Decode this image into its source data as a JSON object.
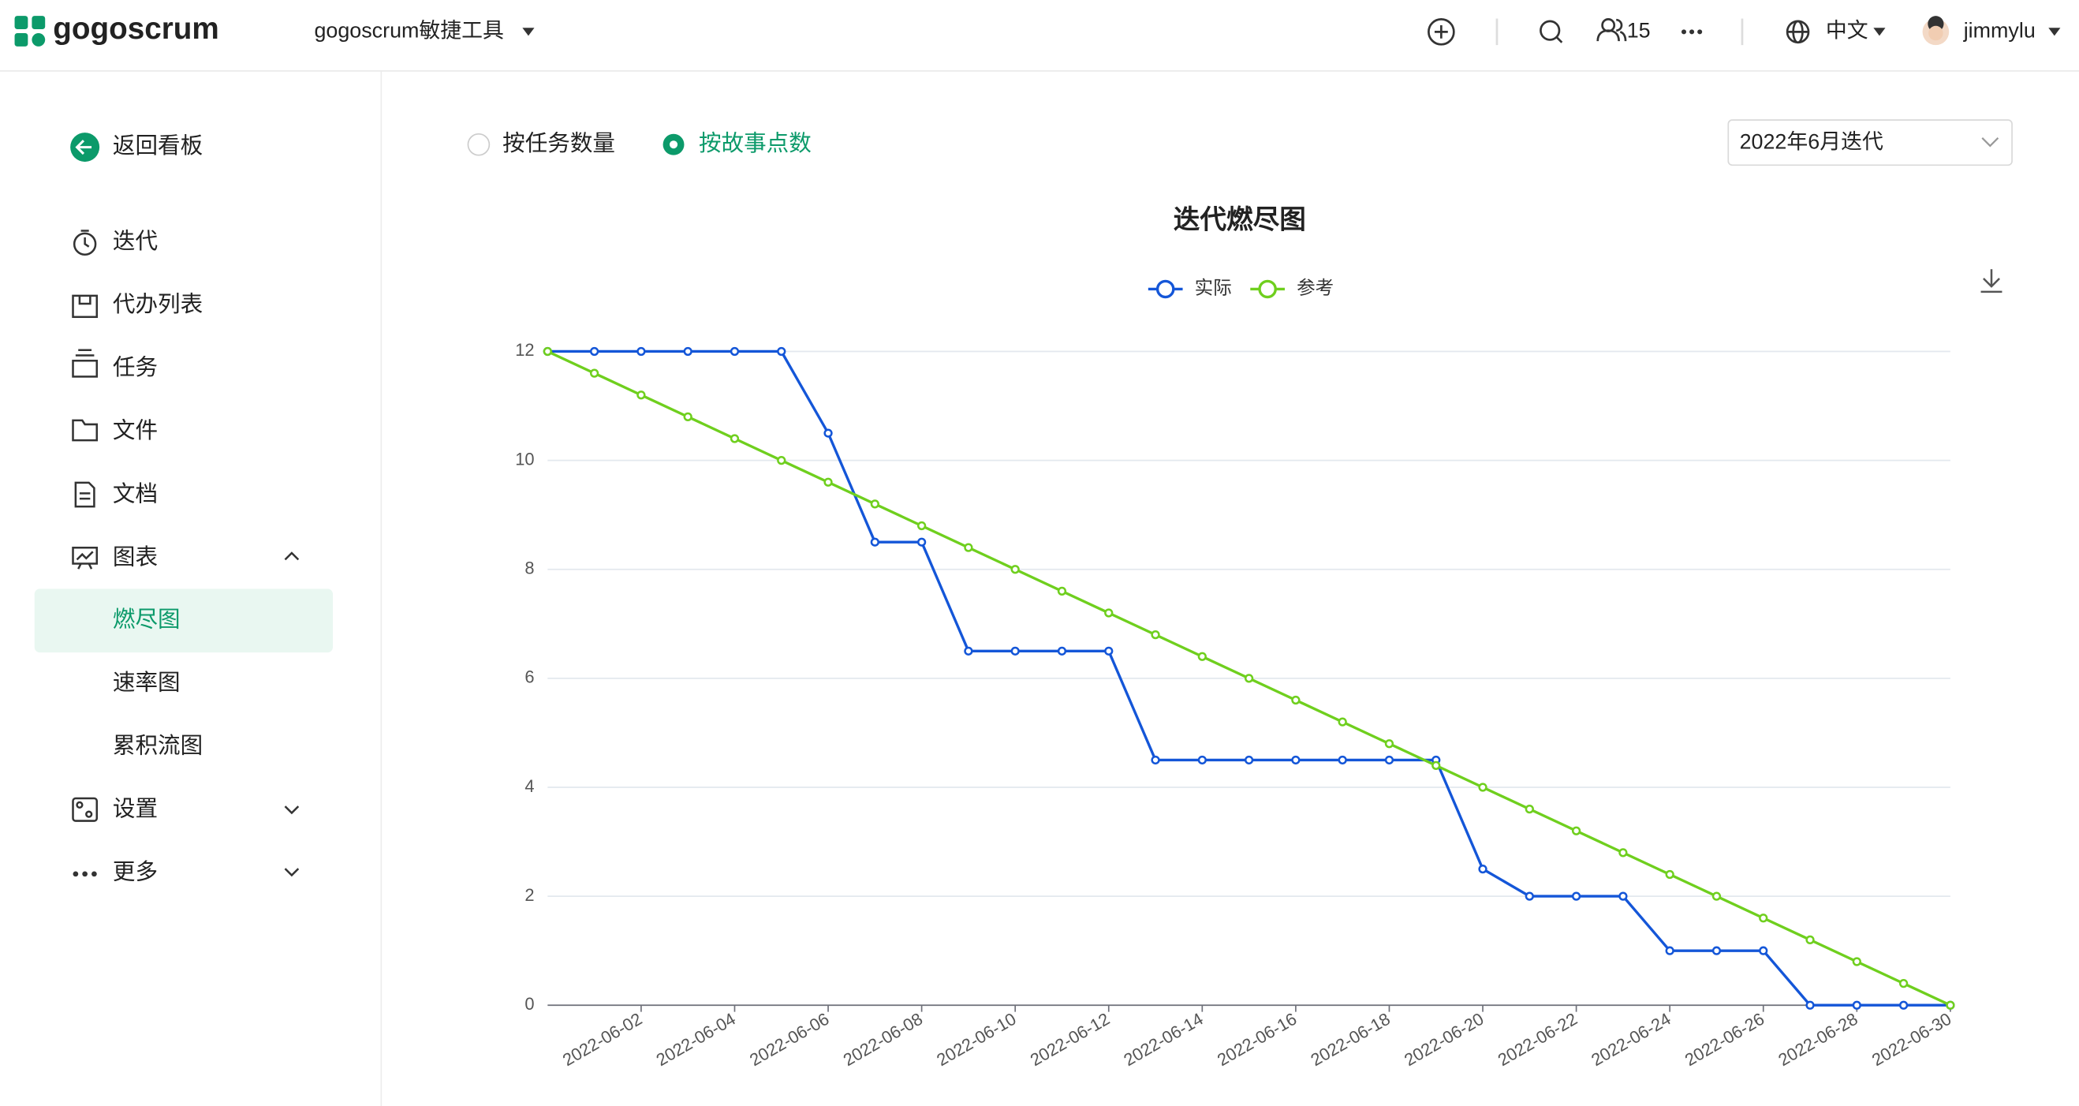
{
  "header": {
    "brand": "gogoscrum",
    "project": "gogoscrum敏捷工具",
    "members": "15",
    "language": "中文",
    "user": "jimmylu"
  },
  "sidebar": {
    "back": "返回看板",
    "items": [
      "迭代",
      "代办列表",
      "任务",
      "文件",
      "文档",
      "图表"
    ],
    "sub_items": [
      "燃尽图",
      "速率图",
      "累积流图"
    ],
    "more_items": [
      "设置",
      "更多"
    ]
  },
  "options": {
    "radios": [
      "按任务数量",
      "按故事点数"
    ],
    "selected": 1,
    "sprint": "2022年6月迭代"
  },
  "chart_data": {
    "type": "line",
    "title": "迭代燃尽图",
    "categories": [
      null,
      null,
      "2022-06-02",
      null,
      "2022-06-04",
      null,
      "2022-06-06",
      null,
      "2022-06-08",
      null,
      "2022-06-10",
      null,
      "2022-06-12",
      null,
      "2022-06-14",
      null,
      "2022-06-16",
      null,
      "2022-06-18",
      null,
      "2022-06-20",
      null,
      "2022-06-22",
      null,
      "2022-06-24",
      null,
      "2022-06-26",
      null,
      "2022-06-28",
      null,
      "2022-06-30"
    ],
    "series": [
      {
        "name": "实际",
        "color": "#1456d8",
        "values": [
          12,
          12,
          12,
          12,
          12,
          12,
          10.5,
          8.5,
          8.5,
          6.5,
          6.5,
          6.5,
          6.5,
          4.5,
          4.5,
          4.5,
          4.5,
          4.5,
          4.5,
          4.5,
          2.5,
          2,
          2,
          2,
          1,
          1,
          1,
          0,
          0,
          0,
          0
        ]
      },
      {
        "name": "参考",
        "color": "#6fcf1e",
        "values": [
          12,
          11.6,
          11.2,
          10.8,
          10.4,
          10,
          9.6,
          9.2,
          8.8,
          8.4,
          8,
          7.6,
          7.2,
          6.8,
          6.4,
          6,
          5.6,
          5.2,
          4.8,
          4.4,
          4,
          3.6,
          3.2,
          2.8,
          2.4,
          2,
          1.6,
          1.2,
          0.8,
          0.4,
          0
        ]
      }
    ],
    "ylim": [
      0,
      12
    ],
    "yticks": [
      0,
      2,
      4,
      6,
      8,
      10,
      12
    ],
    "grid": true,
    "legend": "top"
  }
}
